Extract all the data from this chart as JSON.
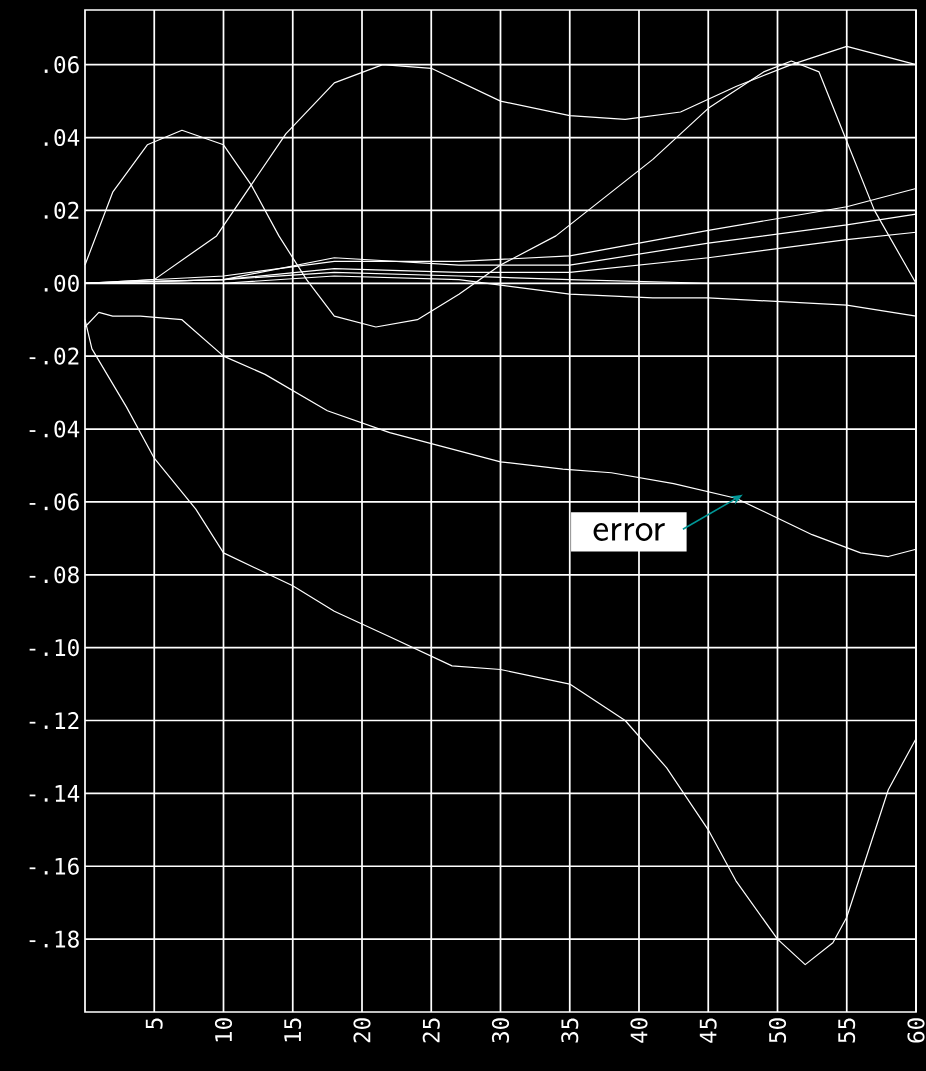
{
  "chart_data": {
    "type": "line",
    "xlim": [
      0,
      60
    ],
    "ylim": [
      -0.2,
      0.075
    ],
    "xticks": [
      5,
      10,
      15,
      20,
      25,
      30,
      35,
      40,
      45,
      50,
      55,
      60
    ],
    "yticks": [
      {
        "value": 0.06,
        "label": ".06"
      },
      {
        "value": 0.04,
        "label": ".04"
      },
      {
        "value": 0.02,
        "label": ".02"
      },
      {
        "value": 0,
        "label": ".00"
      },
      {
        "value": -0.02,
        "label": "-.02"
      },
      {
        "value": -0.04,
        "label": "-.04"
      },
      {
        "value": -0.06,
        "label": "-.06"
      },
      {
        "value": -0.08,
        "label": "-.08"
      },
      {
        "value": -0.1,
        "label": "-.10"
      },
      {
        "value": -0.12,
        "label": "-.12"
      },
      {
        "value": -0.14,
        "label": "-.14"
      },
      {
        "value": -0.16,
        "label": "-.16"
      },
      {
        "value": -0.18,
        "label": "-.18"
      }
    ],
    "grid": true,
    "line_style": "solid",
    "annotations": [
      {
        "text": "error",
        "x": 47.5,
        "y": -0.058
      }
    ],
    "series": [
      {
        "color": "#ffffff",
        "x": [
          0,
          5,
          9.5,
          14.5,
          18,
          21.5,
          25,
          30,
          35,
          39,
          43,
          47,
          51,
          55,
          60
        ],
        "values": [
          0,
          0.001,
          0.013,
          0.041,
          0.055,
          0.06,
          0.059,
          0.05,
          0.046,
          0.045,
          0.047,
          0.054,
          0.06,
          0.065,
          0.06
        ]
      },
      {
        "color": "#ffffff",
        "x": [
          0,
          2,
          4.5,
          7,
          10,
          12,
          14,
          16,
          18,
          21,
          24,
          27,
          30,
          34,
          41,
          45,
          49,
          51,
          53,
          55,
          57,
          60
        ],
        "values": [
          0.005,
          0.025,
          0.038,
          0.042,
          0.038,
          0.027,
          0.013,
          0.001,
          -0.009,
          -0.012,
          -0.01,
          -0.003,
          0.005,
          0.013,
          0.034,
          0.048,
          0.058,
          0.061,
          0.058,
          0.039,
          0.02,
          0
        ]
      },
      {
        "color": "#ffffff",
        "x": [
          0,
          10,
          18,
          27,
          35,
          45,
          55,
          60
        ],
        "values": [
          0,
          0.002,
          0.006,
          0.006,
          0.0075,
          0.0145,
          0.021,
          0.026
        ]
      },
      {
        "color": "#ffffff",
        "x": [
          0,
          10,
          18,
          27,
          35,
          45,
          55,
          60
        ],
        "values": [
          0,
          0.001,
          0.007,
          0.005,
          0.005,
          0.011,
          0.016,
          0.019
        ]
      },
      {
        "color": "#ffffff",
        "x": [
          0,
          10,
          18,
          27,
          35,
          45,
          55,
          60
        ],
        "values": [
          0,
          0.001,
          0.004,
          0.003,
          0.003,
          0.007,
          0.012,
          0.014
        ]
      },
      {
        "color": "#ffffff",
        "x": [
          0,
          10,
          18,
          27,
          35,
          45,
          55,
          60
        ],
        "values": [
          0,
          0.001,
          0.003,
          0.002,
          0.001,
          0,
          0,
          0
        ]
      },
      {
        "color": "#ffffff",
        "x": [
          0,
          10,
          18,
          27,
          35,
          41,
          45,
          55,
          60
        ],
        "values": [
          0,
          0,
          0.002,
          0.001,
          -0.003,
          -0.004,
          -0.004,
          -0.006,
          -0.009
        ]
      },
      {
        "color": "#ffffff",
        "x": [
          0,
          1,
          2,
          4,
          7,
          10,
          13,
          17.5,
          22,
          26,
          30,
          34.5,
          38,
          42.5,
          47,
          52.5,
          56,
          58,
          60
        ],
        "values": [
          -0.012,
          -0.008,
          -0.009,
          -0.009,
          -0.01,
          -0.02,
          -0.025,
          -0.035,
          -0.041,
          -0.045,
          -0.049,
          -0.051,
          -0.052,
          -0.055,
          -0.059,
          -0.069,
          -0.074,
          -0.075,
          -0.073
        ]
      },
      {
        "color": "#ffffff",
        "x": [
          0,
          0.5,
          3,
          5,
          8,
          10,
          15,
          18,
          22,
          26.5,
          30,
          35,
          39,
          42,
          45,
          47,
          50,
          52,
          54,
          55,
          58,
          60
        ],
        "values": [
          -0.01,
          -0.018,
          -0.034,
          -0.048,
          -0.062,
          -0.074,
          -0.083,
          -0.09,
          -0.097,
          -0.105,
          -0.106,
          -0.11,
          -0.12,
          -0.133,
          -0.15,
          -0.164,
          -0.18,
          -0.187,
          -0.181,
          -0.174,
          -0.139,
          -0.125
        ]
      }
    ]
  }
}
